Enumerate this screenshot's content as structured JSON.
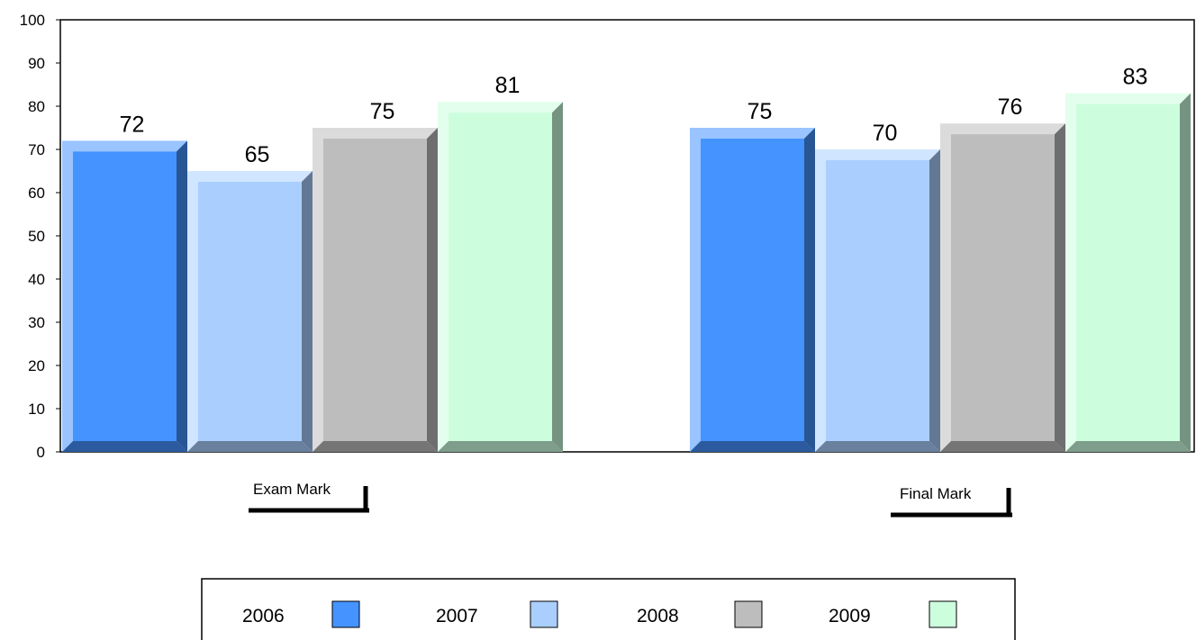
{
  "chart_data": {
    "type": "bar",
    "categories": [
      "Exam Mark",
      "Final Mark"
    ],
    "series": [
      {
        "name": "2006",
        "values": [
          72,
          75
        ],
        "color": "#4593ff"
      },
      {
        "name": "2007",
        "values": [
          65,
          70
        ],
        "color": "#aacfff"
      },
      {
        "name": "2008",
        "values": [
          75,
          76
        ],
        "color": "#bdbdbd"
      },
      {
        "name": "2009",
        "values": [
          81,
          83
        ],
        "color": "#ccfede"
      }
    ],
    "ylim": [
      0,
      100
    ],
    "yticks": [
      0,
      10,
      20,
      30,
      40,
      50,
      60,
      70,
      80,
      90,
      100
    ],
    "grid": false,
    "legend_position": "bottom",
    "style": "3d-bevel"
  }
}
